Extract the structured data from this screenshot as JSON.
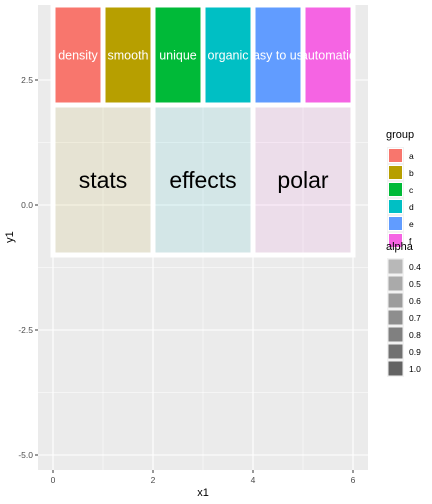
{
  "chart_data": {
    "type": "rect",
    "title": "",
    "xlabel": "x1",
    "ylabel": "y1",
    "xlim": [
      -0.3,
      6.3
    ],
    "ylim": [
      -5.3,
      4.0
    ],
    "x_ticks": [
      0,
      2,
      4,
      6
    ],
    "y_ticks": [
      -5.0,
      -2.5,
      0.0,
      2.5
    ],
    "x_tick_labels": [
      "0",
      "2",
      "4",
      "6"
    ],
    "y_tick_labels": [
      "-5.0",
      "-2.5",
      "0.0",
      "2.5"
    ],
    "grid": true,
    "legend_placement": "right",
    "top_tiles": [
      {
        "group": "a",
        "label": "density",
        "x": [
          0,
          1
        ],
        "y": [
          2,
          4
        ],
        "color": "#F8766D"
      },
      {
        "group": "b",
        "label": "smooth",
        "x": [
          1,
          2
        ],
        "y": [
          2,
          4
        ],
        "color": "#B79F00"
      },
      {
        "group": "c",
        "label": "unique",
        "x": [
          2,
          3
        ],
        "y": [
          2,
          4
        ],
        "color": "#00BA38"
      },
      {
        "group": "d",
        "label": "organic",
        "x": [
          3,
          4
        ],
        "y": [
          2,
          4
        ],
        "color": "#00BFC4"
      },
      {
        "group": "e",
        "label": "easy to use",
        "x": [
          4,
          5
        ],
        "y": [
          2,
          4
        ],
        "color": "#619CFF"
      },
      {
        "group": "f",
        "label": "automatic",
        "x": [
          5,
          6
        ],
        "y": [
          2,
          4
        ],
        "color": "#F564E3"
      }
    ],
    "bottom_tiles": [
      {
        "label": "stats",
        "x": [
          0,
          2
        ],
        "y": [
          -1,
          2
        ],
        "color": "#B79F00",
        "alpha": 0.1
      },
      {
        "label": "effects",
        "x": [
          2,
          4
        ],
        "y": [
          -1,
          2
        ],
        "color": "#00BFC4",
        "alpha": 0.1
      },
      {
        "label": "polar",
        "x": [
          4,
          6
        ],
        "y": [
          -1,
          2
        ],
        "color": "#F564E3",
        "alpha": 0.1
      }
    ],
    "legend_group": {
      "title": "group",
      "items": [
        {
          "label": "a",
          "color": "#F8766D"
        },
        {
          "label": "b",
          "color": "#B79F00"
        },
        {
          "label": "c",
          "color": "#00BA38"
        },
        {
          "label": "d",
          "color": "#00BFC4"
        },
        {
          "label": "e",
          "color": "#619CFF"
        },
        {
          "label": "f",
          "color": "#F564E3"
        }
      ]
    },
    "legend_alpha": {
      "title": "alpha",
      "items": [
        {
          "label": "0.4",
          "alpha": 0.4
        },
        {
          "label": "0.5",
          "alpha": 0.5
        },
        {
          "label": "0.6",
          "alpha": 0.6
        },
        {
          "label": "0.7",
          "alpha": 0.7
        },
        {
          "label": "0.8",
          "alpha": 0.8
        },
        {
          "label": "0.9",
          "alpha": 0.9
        },
        {
          "label": "1.0",
          "alpha": 1.0
        }
      ]
    }
  }
}
